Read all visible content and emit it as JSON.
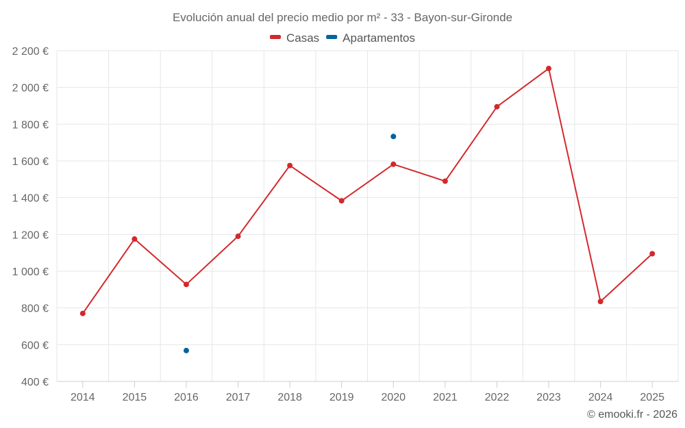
{
  "chart_data": {
    "type": "line",
    "title": "Evolución anual del precio medio por m² - 33 - Bayon-sur-Gironde",
    "categories": [
      "2014",
      "2015",
      "2016",
      "2017",
      "2018",
      "2019",
      "2020",
      "2021",
      "2022",
      "2023",
      "2024",
      "2025"
    ],
    "series": [
      {
        "name": "Casas",
        "color": "#d3282c",
        "values": [
          770,
          1175,
          928,
          1190,
          1575,
          1383,
          1582,
          1490,
          1895,
          2103,
          835,
          1095
        ]
      },
      {
        "name": "Apartamentos",
        "color": "#03649b",
        "values": [
          null,
          null,
          568,
          null,
          null,
          null,
          1733,
          null,
          null,
          null,
          null,
          null
        ]
      }
    ],
    "y_ticks": [
      400,
      600,
      800,
      1000,
      1200,
      1400,
      1600,
      1800,
      2000,
      2200
    ],
    "y_tick_labels": [
      "400 €",
      "600 €",
      "800 €",
      "1 000 €",
      "1 200 €",
      "1 400 €",
      "1 600 €",
      "1 800 €",
      "2 000 €",
      "2 200 €"
    ],
    "ylim": [
      400,
      2200
    ],
    "grid": true,
    "legend_position": "top-center",
    "xlabel": "",
    "ylabel": ""
  },
  "credit": "© emooki.fr - 2026"
}
